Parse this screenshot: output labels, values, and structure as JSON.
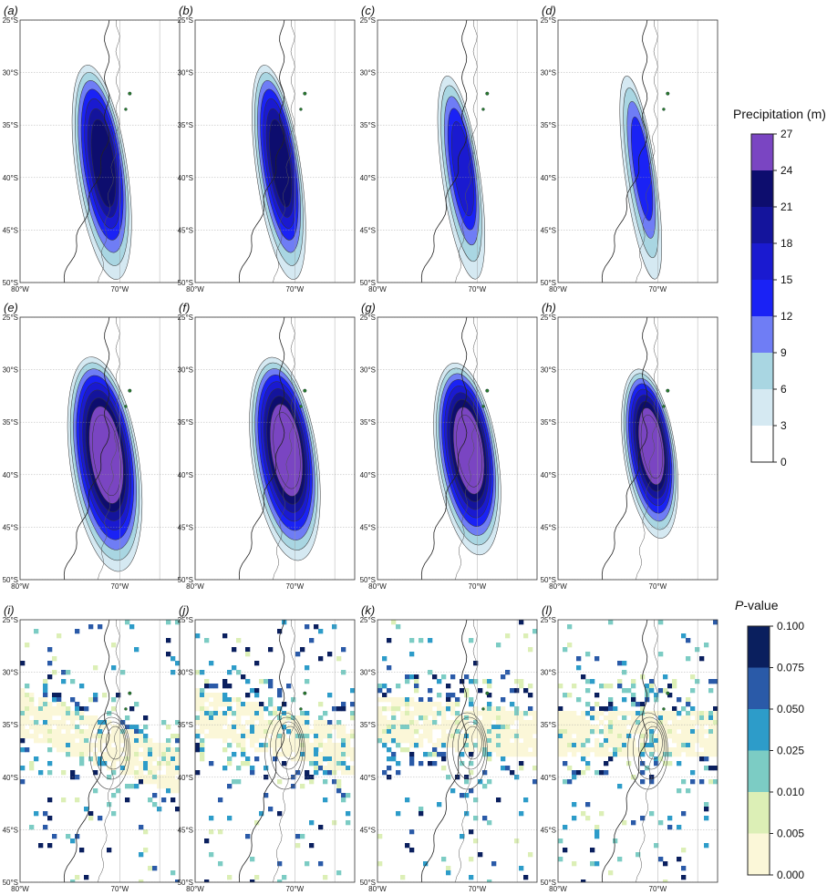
{
  "chart_data": {
    "type": "heatmap",
    "title": "",
    "panel_labels": [
      "(a)",
      "(b)",
      "(c)",
      "(d)",
      "(e)",
      "(f)",
      "(g)",
      "(h)",
      "(i)",
      "(j)",
      "(k)",
      "(l)"
    ],
    "map_extent": {
      "lon": [
        -80,
        -64
      ],
      "lat": [
        -50,
        -25
      ]
    },
    "y_ticks": [
      "25°S",
      "30°S",
      "35°S",
      "40°S",
      "45°S",
      "50°S"
    ],
    "y_tick_values": [
      -25,
      -30,
      -35,
      -40,
      -45,
      -50
    ],
    "x_ticks": [
      "80°W",
      "70°W"
    ],
    "x_tick_values": [
      -80,
      -70
    ],
    "precipitation_colorbar": {
      "title": "Precipitation (m)",
      "levels": [
        0,
        3,
        6,
        9,
        12,
        15,
        18,
        21,
        24,
        27
      ],
      "colors": [
        "#ffffff",
        "#d5e9f2",
        "#a9d6e2",
        "#6f7df5",
        "#1a22f5",
        "#1a1ad0",
        "#14149c",
        "#0d0d6e",
        "#7a45c2",
        "#e47ee0"
      ]
    },
    "pvalue_colorbar": {
      "title_italic": "P",
      "title_rest": "-value",
      "levels": [
        "0.000",
        "0.005",
        "0.010",
        "0.025",
        "0.050",
        "0.075",
        "0.100"
      ],
      "colors": [
        "#fbf7d8",
        "#dcefb6",
        "#7cccc4",
        "#2d9cc9",
        "#2a5aa8",
        "#0a1f5e"
      ]
    },
    "panels": [
      {
        "label": "(a)",
        "kind": "precip",
        "center_lat": -39.5,
        "center_lon": -71.8,
        "lat_span": 9.5,
        "lon_span": 1.5,
        "max_level": 21
      },
      {
        "label": "(b)",
        "kind": "precip",
        "center_lat": -39.5,
        "center_lon": -71.6,
        "lat_span": 9.5,
        "lon_span": 1.3,
        "max_level": 21
      },
      {
        "label": "(c)",
        "kind": "precip",
        "center_lat": -40.0,
        "center_lon": -71.6,
        "lat_span": 9.0,
        "lon_span": 1.1,
        "max_level": 15
      },
      {
        "label": "(d)",
        "kind": "precip",
        "center_lat": -40.0,
        "center_lon": -71.7,
        "lat_span": 9.0,
        "lon_span": 0.9,
        "max_level": 12
      },
      {
        "label": "(e)",
        "kind": "precip",
        "center_lat": -39.0,
        "center_lon": -71.5,
        "lat_span": 9.5,
        "lon_span": 2.0,
        "max_level": 27
      },
      {
        "label": "(f)",
        "kind": "precip",
        "center_lat": -38.5,
        "center_lon": -71.0,
        "lat_span": 9.0,
        "lon_span": 1.9,
        "max_level": 27
      },
      {
        "label": "(g)",
        "kind": "precip",
        "center_lat": -38.5,
        "center_lon": -71.0,
        "lat_span": 8.5,
        "lon_span": 1.8,
        "max_level": 27
      },
      {
        "label": "(h)",
        "kind": "precip",
        "center_lat": -38.0,
        "center_lon": -70.8,
        "lat_span": 7.5,
        "lon_span": 1.5,
        "max_level": 27
      },
      {
        "label": "(i)",
        "kind": "pvalue",
        "band_lat": -36.5,
        "band_tilt": -0.35,
        "seed": 11
      },
      {
        "label": "(j)",
        "kind": "pvalue",
        "band_lat": -35.5,
        "band_tilt": -0.25,
        "seed": 23
      },
      {
        "label": "(k)",
        "kind": "pvalue",
        "band_lat": -35.0,
        "band_tilt": -0.1,
        "seed": 37
      },
      {
        "label": "(l)",
        "kind": "pvalue",
        "band_lat": -35.5,
        "band_tilt": 0.0,
        "seed": 53
      }
    ]
  }
}
